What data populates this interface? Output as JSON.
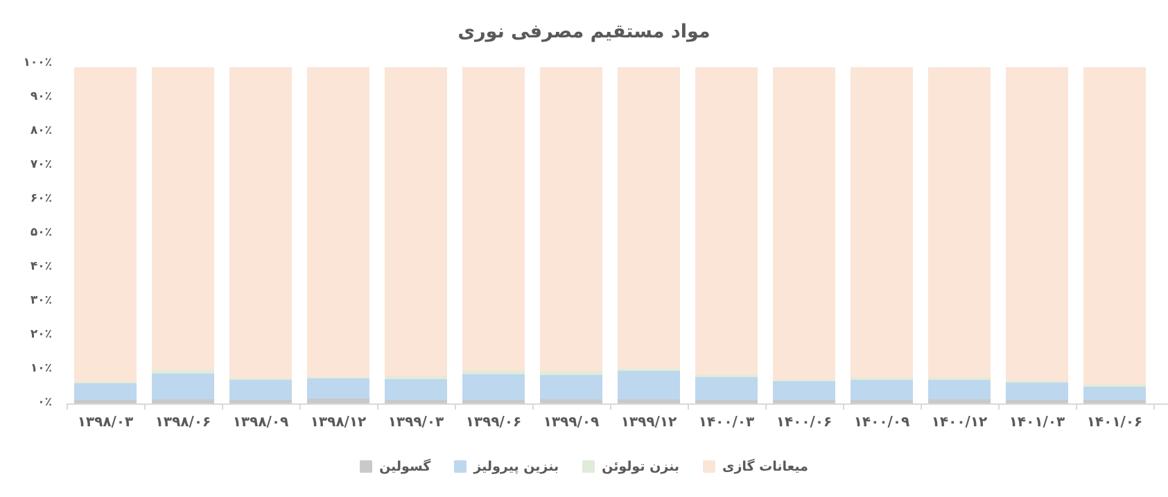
{
  "title": "مواد مستقیم مصرفی نوری",
  "colors": {
    "text": "#595959",
    "axis": "#d9d9d9",
    "series_gasoline": "#c9c9c9",
    "series_pyrolysis_gasoline": "#bdd7ee",
    "series_benzene_toluene": "#dfecd9",
    "series_gas_condensate": "#fbe5d6"
  },
  "chart_data": {
    "type": "bar",
    "stacked": true,
    "stack_unit": "percent",
    "title": "مواد مستقیم مصرفی نوری",
    "xlabel": "",
    "ylabel": "",
    "ylim": [
      0,
      100
    ],
    "grid": false,
    "legend_position": "bottom",
    "y_tick_labels_top_to_bottom": [
      "۱۰۰٪",
      "۹۰٪",
      "۸۰٪",
      "۷۰٪",
      "۶۰٪",
      "۵۰٪",
      "۴۰٪",
      "۳۰٪",
      "۲۰٪",
      "۱۰٪",
      "۰٪"
    ],
    "categories": [
      "۱۳۹۸/۰۳",
      "۱۳۹۸/۰۶",
      "۱۳۹۸/۰۹",
      "۱۳۹۸/۱۲",
      "۱۳۹۹/۰۳",
      "۱۳۹۹/۰۶",
      "۱۳۹۹/۰۹",
      "۱۳۹۹/۱۲",
      "۱۴۰۰/۰۳",
      "۱۴۰۰/۰۶",
      "۱۴۰۰/۰۹",
      "۱۴۰۰/۱۲",
      "۱۴۰۱/۰۳",
      "۱۴۰۱/۰۶"
    ],
    "series": [
      {
        "name": "گسولین",
        "color": "#c9c9c9",
        "values": [
          1.0,
          1.2,
          1.0,
          1.4,
          1.0,
          1.0,
          1.2,
          1.2,
          1.0,
          1.0,
          1.0,
          1.2,
          1.0,
          1.0
        ]
      },
      {
        "name": "بنزین پیرولیز",
        "color": "#bdd7ee",
        "values": [
          4.9,
          7.7,
          6.1,
          6.1,
          6.3,
          7.7,
          7.3,
          8.4,
          6.9,
          5.5,
          6.1,
          5.9,
          5.1,
          3.9
        ]
      },
      {
        "name": "بنزن تولوئن",
        "color": "#dfecd9",
        "values": [
          0.6,
          1.0,
          0.3,
          0.3,
          0.8,
          1.0,
          1.0,
          0.8,
          0.6,
          0.6,
          0.6,
          0.6,
          0.6,
          0.6
        ]
      },
      {
        "name": "میعانات گازی",
        "color": "#fbe5d6",
        "values": [
          93.5,
          90.1,
          92.6,
          92.2,
          91.9,
          90.3,
          90.5,
          89.6,
          91.5,
          92.9,
          92.3,
          92.3,
          93.3,
          94.5
        ]
      }
    ]
  }
}
